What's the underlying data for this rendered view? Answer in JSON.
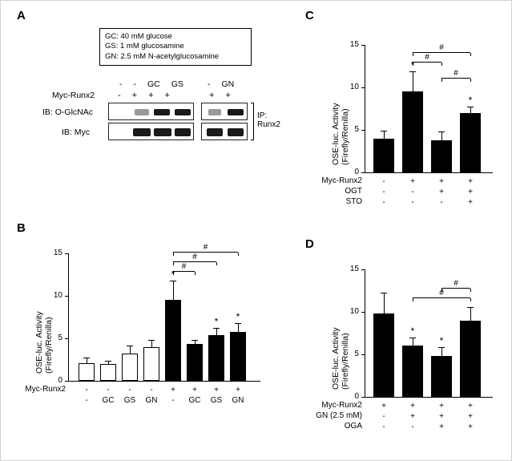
{
  "panels": {
    "A": "A",
    "B": "B",
    "C": "C",
    "D": "D"
  },
  "panelA": {
    "legend": {
      "gc": "GC: 40 mM glucose",
      "gs": "GS: 1 mM glucosamine",
      "gn": "GN: 2.5 mM N-acetylglucosamine"
    },
    "myc_label": "Myc-Runx2",
    "ib_oglcnac": "IB: O-GlcNAc",
    "ib_myc": "IB: Myc",
    "ip_label_top": "IP:",
    "ip_label_bot": "Runx2",
    "treat_group1": [
      "-",
      "-",
      "GC",
      "GS"
    ],
    "treat_group2": [
      "-",
      "GN"
    ],
    "myc_group1": [
      "-",
      "+",
      "+",
      "+"
    ],
    "myc_group2": [
      "+",
      "+"
    ]
  },
  "chartCommon": {
    "ylabel1": "OSE-luc. Activity",
    "ylabel2": "(Firefly/Renilla)",
    "star": "*",
    "hash": "#"
  },
  "panelB": {
    "ymax": 15,
    "ticks": [
      0,
      5,
      10,
      15
    ],
    "bars": [
      {
        "val": 2.1,
        "err": 0.5,
        "filled": false
      },
      {
        "val": 2.0,
        "err": 0.3,
        "filled": false
      },
      {
        "val": 3.2,
        "err": 0.9,
        "filled": false
      },
      {
        "val": 4.0,
        "err": 0.7,
        "filled": false
      },
      {
        "val": 9.5,
        "err": 2.2,
        "filled": true,
        "sig": "*"
      },
      {
        "val": 4.3,
        "err": 0.4,
        "filled": true
      },
      {
        "val": 5.4,
        "err": 0.7,
        "filled": true,
        "sig": "*"
      },
      {
        "val": 5.8,
        "err": 0.9,
        "filled": true,
        "sig": "*"
      }
    ],
    "row1_label": "Myc-Runx2",
    "row1": [
      "-",
      "-",
      "-",
      "-",
      "+",
      "+",
      "+",
      "+"
    ],
    "row2": [
      "-",
      "GC",
      "GS",
      "GN",
      "-",
      "GC",
      "GS",
      "GN"
    ],
    "brackets": [
      {
        "from": 4,
        "to": 5
      },
      {
        "from": 4,
        "to": 6
      },
      {
        "from": 4,
        "to": 7
      }
    ]
  },
  "panelC": {
    "ymax": 15,
    "ticks": [
      0,
      5,
      10,
      15
    ],
    "bars": [
      {
        "val": 4.0,
        "err": 0.8,
        "filled": true
      },
      {
        "val": 9.5,
        "err": 2.3,
        "filled": true,
        "sig": "*"
      },
      {
        "val": 3.8,
        "err": 0.9,
        "filled": true
      },
      {
        "val": 7.0,
        "err": 0.6,
        "filled": true,
        "sig": "*"
      }
    ],
    "rows": [
      {
        "label": "Myc-Runx2",
        "vals": [
          "-",
          "+",
          "+",
          "+"
        ]
      },
      {
        "label": "OGT",
        "vals": [
          "-",
          "-",
          "+",
          "+"
        ]
      },
      {
        "label": "STO",
        "vals": [
          "-",
          "-",
          "-",
          "+"
        ]
      }
    ],
    "brackets": [
      {
        "from": 1,
        "to": 2
      },
      {
        "from": 1,
        "to": 3
      },
      {
        "from": 2,
        "to": 3
      }
    ]
  },
  "panelD": {
    "ymax": 15,
    "ticks": [
      0,
      5,
      10,
      15
    ],
    "bars": [
      {
        "val": 9.8,
        "err": 2.4,
        "filled": true
      },
      {
        "val": 6.0,
        "err": 0.9,
        "filled": true,
        "sig": "*"
      },
      {
        "val": 4.8,
        "err": 1.0,
        "filled": true,
        "sig": "*"
      },
      {
        "val": 9.0,
        "err": 1.5,
        "filled": true
      }
    ],
    "rows": [
      {
        "label": "Myc-Runx2",
        "vals": [
          "+",
          "+",
          "+",
          "+"
        ]
      },
      {
        "label": "GN (2.5 mM)",
        "vals": [
          "-",
          "+",
          "+",
          "+"
        ]
      },
      {
        "label": "OGA",
        "vals": [
          "-",
          "-",
          "+",
          "+"
        ]
      }
    ],
    "brackets": [
      {
        "from": 1,
        "to": 3
      },
      {
        "from": 2,
        "to": 3
      }
    ]
  },
  "style": {
    "barWidthB": 20,
    "barGapB": 7,
    "barWidthCD": 26,
    "barGapCD": 10
  }
}
